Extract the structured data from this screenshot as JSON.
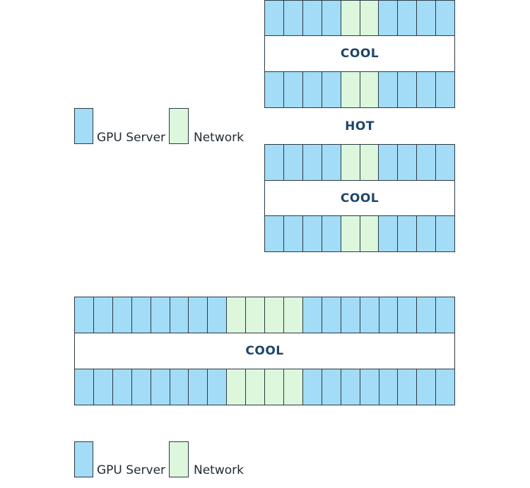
{
  "colors": {
    "gpu": "#a3dcf6",
    "network": "#dcf7dc",
    "border": "#2d3a44",
    "label": "#1e4568"
  },
  "legend": {
    "gpu_label": "GPU Server",
    "network_label": "Network"
  },
  "pod_small": {
    "row_pattern": [
      "gpu",
      "gpu",
      "gpu",
      "gpu",
      "net",
      "net",
      "gpu",
      "gpu",
      "gpu",
      "gpu"
    ],
    "cool_label_1": "COOL",
    "hot_label": "HOT",
    "cool_label_2": "COOL"
  },
  "pod_large": {
    "row_pattern": [
      "gpu",
      "gpu",
      "gpu",
      "gpu",
      "gpu",
      "gpu",
      "gpu",
      "gpu",
      "net",
      "net",
      "net",
      "net",
      "gpu",
      "gpu",
      "gpu",
      "gpu",
      "gpu",
      "gpu",
      "gpu",
      "gpu"
    ],
    "cool_label": "COOL"
  }
}
